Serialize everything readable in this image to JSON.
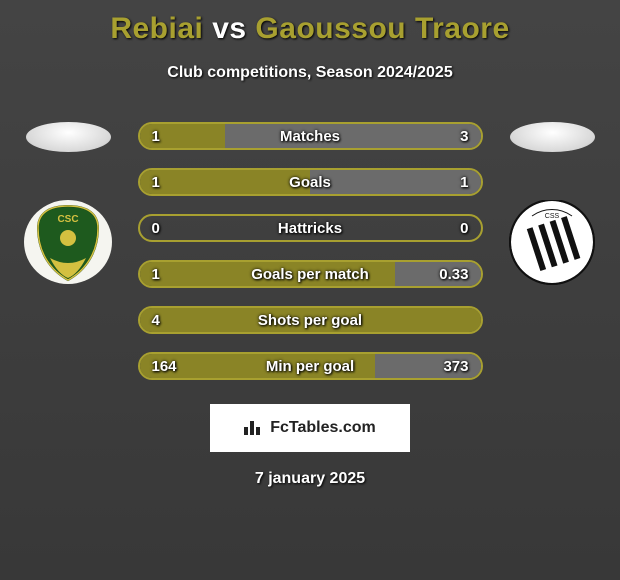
{
  "title": {
    "player1": "Rebiai",
    "vs": "vs",
    "player2": "Gaoussou Traore",
    "player1_color": "#a8a030",
    "vs_color": "#ffffff",
    "player2_color": "#a8a030"
  },
  "subtitle": "Club competitions, Season 2024/2025",
  "colors": {
    "bar_border": "#a8a030",
    "bar_fill_left": "#8a8426",
    "bar_fill_right": "#6b6b6b",
    "background": "#3a3a3a"
  },
  "club_left": {
    "bg_color": "#2a6b2a",
    "shape": "shield-green",
    "label": "CSC"
  },
  "club_right": {
    "bg_color": "#ffffff",
    "shape": "shield-white-stripes",
    "label": "CSS"
  },
  "stats": [
    {
      "label": "Matches",
      "left_value": "1",
      "right_value": "3",
      "left_pct": 25,
      "right_pct": 75
    },
    {
      "label": "Goals",
      "left_value": "1",
      "right_value": "1",
      "left_pct": 50,
      "right_pct": 50
    },
    {
      "label": "Hattricks",
      "left_value": "0",
      "right_value": "0",
      "left_pct": 0,
      "right_pct": 0
    },
    {
      "label": "Goals per match",
      "left_value": "1",
      "right_value": "0.33",
      "left_pct": 75,
      "right_pct": 25
    },
    {
      "label": "Shots per goal",
      "left_value": "4",
      "right_value": "",
      "left_pct": 100,
      "right_pct": 0
    },
    {
      "label": "Min per goal",
      "left_value": "164",
      "right_value": "373",
      "left_pct": 69,
      "right_pct": 31
    }
  ],
  "watermark": "FcTables.com",
  "date": "7 january 2025"
}
